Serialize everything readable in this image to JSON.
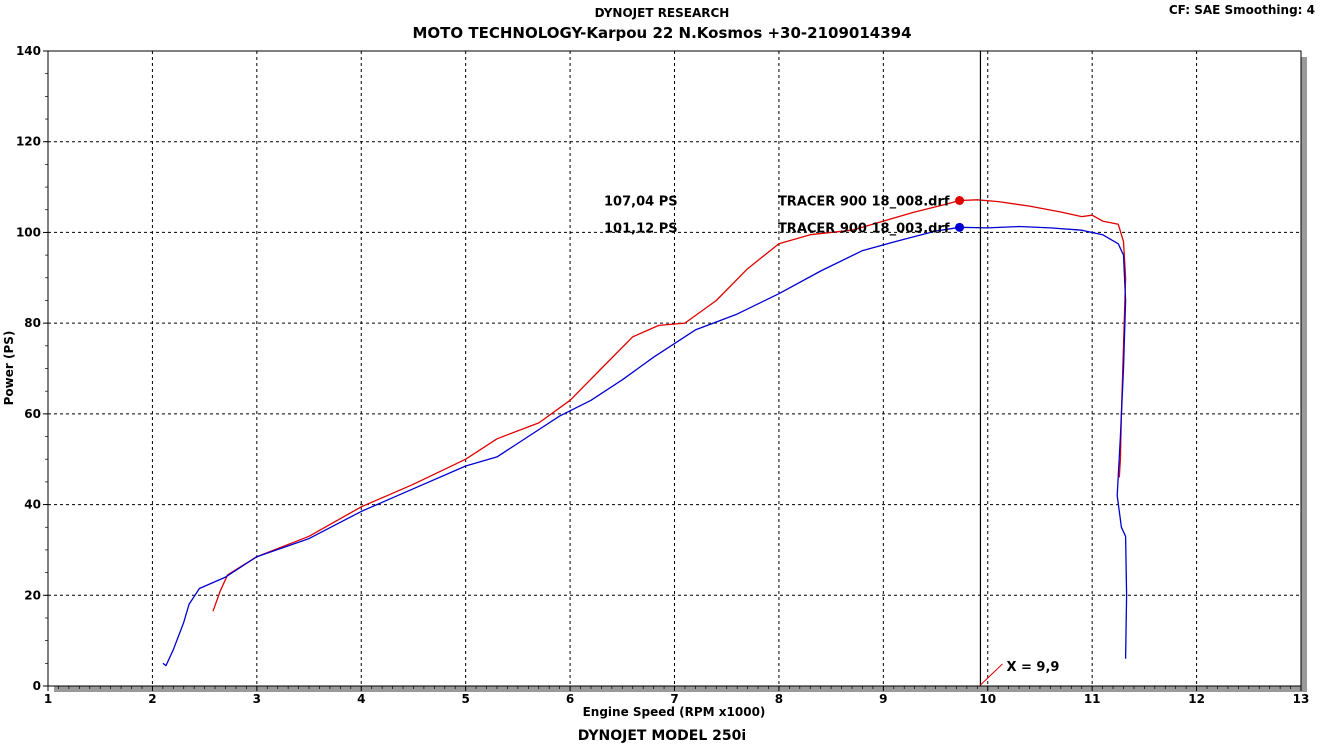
{
  "header": {
    "brand": "DYNOJET RESEARCH",
    "title": "MOTO TECHNOLOGY-Karpou 22 N.Kosmos +30-2109014394",
    "cf_label": "CF: SAE  Smoothing: 4"
  },
  "footer": {
    "model": "DYNOJET  MODEL  250i"
  },
  "chart_data": {
    "type": "line",
    "xlabel": "Engine Speed (RPM x1000)",
    "ylabel": "Power (PS)",
    "xlim": [
      1,
      13
    ],
    "ylim": [
      0,
      140
    ],
    "x_ticks": [
      "1",
      "2",
      "3",
      "4",
      "5",
      "6",
      "7",
      "8",
      "9",
      "10",
      "11",
      "12",
      "13"
    ],
    "y_ticks": [
      "0",
      "20",
      "40",
      "60",
      "80",
      "100",
      "120",
      "140"
    ],
    "grid": true,
    "cursor": {
      "x": 9.93,
      "label": "X = 9,9"
    },
    "series": [
      {
        "name": "TRACER 900 18_008.drf",
        "peak_label": "107,04 PS",
        "color": "#e00000",
        "marker": [
          9.73,
          107.04
        ],
        "points": [
          [
            2.58,
            16.5
          ],
          [
            2.65,
            21
          ],
          [
            2.72,
            24.5
          ],
          [
            3.0,
            28.5
          ],
          [
            3.5,
            33
          ],
          [
            4.0,
            39.5
          ],
          [
            4.5,
            44.5
          ],
          [
            5.0,
            50
          ],
          [
            5.3,
            54.5
          ],
          [
            5.7,
            58
          ],
          [
            6.0,
            63
          ],
          [
            6.3,
            70
          ],
          [
            6.6,
            77
          ],
          [
            6.85,
            79.5
          ],
          [
            7.1,
            80
          ],
          [
            7.4,
            85
          ],
          [
            7.7,
            92
          ],
          [
            8.0,
            97.5
          ],
          [
            8.3,
            99.5
          ],
          [
            8.7,
            100.5
          ],
          [
            9.0,
            102.5
          ],
          [
            9.3,
            104.5
          ],
          [
            9.6,
            106.2
          ],
          [
            9.73,
            107.04
          ],
          [
            9.9,
            107.2
          ],
          [
            10.1,
            106.8
          ],
          [
            10.4,
            105.8
          ],
          [
            10.7,
            104.5
          ],
          [
            10.9,
            103.5
          ],
          [
            11.0,
            103.8
          ],
          [
            11.1,
            102.5
          ],
          [
            11.25,
            101.8
          ],
          [
            11.3,
            98
          ],
          [
            11.32,
            90
          ],
          [
            11.3,
            75
          ],
          [
            11.28,
            60
          ],
          [
            11.27,
            50
          ],
          [
            11.26,
            46
          ]
        ]
      },
      {
        "name": "TRACER 900 18_003.drf",
        "peak_label": "101,12 PS",
        "color": "#0000d0",
        "marker": [
          9.73,
          101.12
        ],
        "points": [
          [
            2.1,
            5
          ],
          [
            2.13,
            4.5
          ],
          [
            2.2,
            8
          ],
          [
            2.3,
            14
          ],
          [
            2.35,
            18
          ],
          [
            2.45,
            21.5
          ],
          [
            2.7,
            24
          ],
          [
            3.0,
            28.5
          ],
          [
            3.5,
            32.5
          ],
          [
            4.0,
            38.5
          ],
          [
            4.5,
            43.5
          ],
          [
            5.0,
            48.5
          ],
          [
            5.3,
            50.5
          ],
          [
            5.6,
            55
          ],
          [
            5.9,
            59.5
          ],
          [
            6.2,
            63
          ],
          [
            6.5,
            67.5
          ],
          [
            6.8,
            72.5
          ],
          [
            7.2,
            78.5
          ],
          [
            7.6,
            82
          ],
          [
            8.0,
            86.5
          ],
          [
            8.4,
            91.5
          ],
          [
            8.8,
            96
          ],
          [
            9.2,
            98.5
          ],
          [
            9.5,
            100.3
          ],
          [
            9.73,
            101.12
          ],
          [
            10.0,
            101
          ],
          [
            10.3,
            101.3
          ],
          [
            10.6,
            101
          ],
          [
            10.9,
            100.5
          ],
          [
            11.1,
            99.5
          ],
          [
            11.25,
            97.5
          ],
          [
            11.3,
            95
          ],
          [
            11.32,
            85
          ],
          [
            11.3,
            70
          ],
          [
            11.27,
            55
          ],
          [
            11.24,
            42
          ],
          [
            11.28,
            35
          ],
          [
            11.32,
            33
          ],
          [
            11.33,
            20
          ],
          [
            11.32,
            6
          ]
        ]
      }
    ]
  }
}
